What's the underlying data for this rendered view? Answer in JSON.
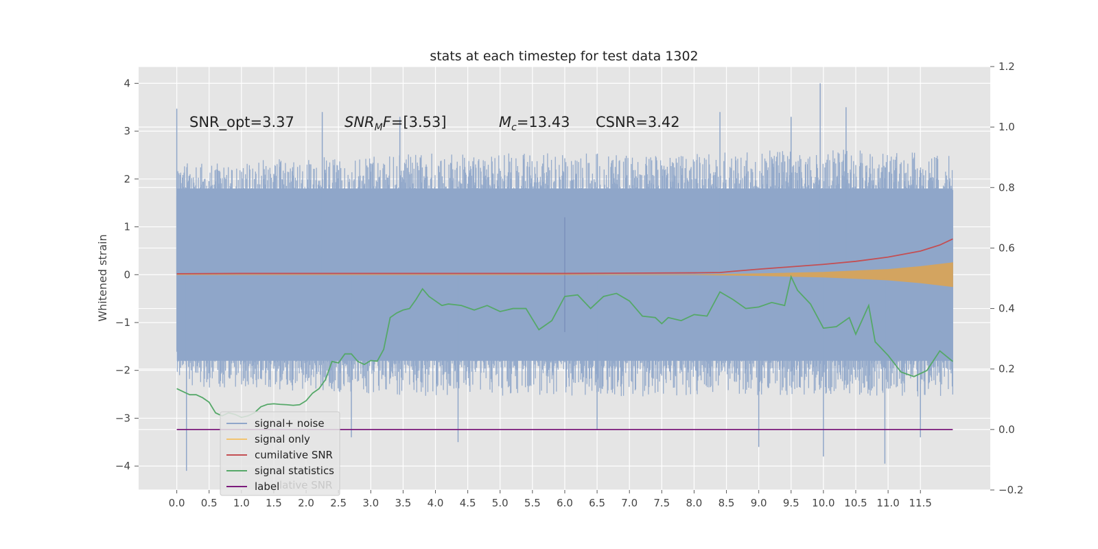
{
  "chart_data": {
    "type": "line",
    "title": "stats at each timestep for test data 1302",
    "ylabel": "Whitened strain",
    "xlabel": "",
    "x_ticks": [
      "0.0",
      "0.5",
      "1.0",
      "1.5",
      "2.0",
      "2.5",
      "3.0",
      "3.5",
      "4.0",
      "4.5",
      "5.0",
      "5.5",
      "6.0",
      "6.5",
      "7.0",
      "7.5",
      "8.0",
      "8.5",
      "9.0",
      "9.5",
      "10.0",
      "10.5",
      "11.0",
      "11.5"
    ],
    "xlim": [
      -0.59,
      12.58
    ],
    "ylim_left": [
      -4.5,
      4.35
    ],
    "yticks_left": [
      4,
      3,
      2,
      1,
      0,
      -1,
      -2,
      -3,
      -4
    ],
    "ylim_right": [
      -0.2,
      1.2
    ],
    "yticks_right": [
      "1.2",
      "1.0",
      "0.8",
      "0.6",
      "0.4",
      "0.2",
      "0.0",
      "−0.2"
    ],
    "grid": true,
    "annotations": {
      "snr_opt": "SNR_opt=3.37",
      "snr_mf_prefix": "SNR",
      "snr_mf_sub": "M",
      "snr_mf_f": "F",
      "snr_mf_value": "=[3.53]",
      "mc_prefix": "M",
      "mc_sub": "c",
      "mc_value": "=13.43",
      "csnr": "CSNR=3.42"
    },
    "legend": {
      "placement": "lower-left",
      "entries": [
        {
          "label": "signal+ noise",
          "color": "#8fa6c9"
        },
        {
          "label": "signal only",
          "color": "#f2c46e"
        },
        {
          "label": "cumilative SNR",
          "color": "#c44e52"
        },
        {
          "label": "signal statistics",
          "color": "#55a868"
        },
        {
          "label": "label",
          "color": "#7b1a7b"
        }
      ],
      "overlapped_fragment": "lative SNR"
    },
    "series": [
      {
        "name": "signal+ noise",
        "axis": "left",
        "color": "#8fa6c9",
        "x_range": [
          0.0,
          12.0
        ],
        "envelope_upper": [
          [
            0.0,
            2.3
          ],
          [
            2.0,
            2.4
          ],
          [
            4.0,
            2.5
          ],
          [
            6.0,
            2.5
          ],
          [
            8.0,
            2.5
          ],
          [
            10.0,
            2.6
          ],
          [
            12.0,
            2.5
          ]
        ],
        "envelope_lower": [
          [
            0.0,
            -2.3
          ],
          [
            2.0,
            -2.4
          ],
          [
            4.0,
            -2.5
          ],
          [
            6.0,
            -2.5
          ],
          [
            8.0,
            -2.5
          ],
          [
            10.0,
            -2.5
          ],
          [
            12.0,
            -2.5
          ]
        ],
        "peaks": [
          [
            0.0,
            3.47
          ],
          [
            0.15,
            -4.1
          ],
          [
            2.25,
            3.4
          ],
          [
            2.7,
            -3.4
          ],
          [
            3.45,
            3.3
          ],
          [
            4.35,
            -3.5
          ],
          [
            6.5,
            -3.25
          ],
          [
            9.95,
            4.0
          ],
          [
            10.35,
            3.5
          ],
          [
            10.95,
            -3.95
          ],
          [
            9.0,
            -3.6
          ],
          [
            10.0,
            -3.8
          ],
          [
            11.5,
            -3.4
          ],
          [
            9.5,
            3.3
          ],
          [
            8.4,
            3.4
          ]
        ],
        "spike_at": [
          6.0,
          1.2,
          -1.2
        ]
      },
      {
        "name": "signal only",
        "axis": "left",
        "color": "#e0a44e",
        "envelope": [
          [
            0.0,
            0.0
          ],
          [
            8.0,
            0.0
          ],
          [
            9.0,
            0.02
          ],
          [
            10.0,
            0.05
          ],
          [
            11.0,
            0.11
          ],
          [
            11.5,
            0.17
          ],
          [
            12.0,
            0.25
          ]
        ]
      },
      {
        "name": "cumilative SNR",
        "axis": "right",
        "color": "#c44e52",
        "points": [
          [
            0.0,
            0.515
          ],
          [
            1.0,
            0.516
          ],
          [
            2.0,
            0.516
          ],
          [
            3.0,
            0.516
          ],
          [
            4.0,
            0.516
          ],
          [
            5.0,
            0.516
          ],
          [
            6.0,
            0.516
          ],
          [
            7.0,
            0.517
          ],
          [
            8.0,
            0.518
          ],
          [
            8.4,
            0.519
          ],
          [
            8.6,
            0.523
          ],
          [
            9.0,
            0.53
          ],
          [
            9.5,
            0.538
          ],
          [
            10.0,
            0.546
          ],
          [
            10.5,
            0.556
          ],
          [
            11.0,
            0.57
          ],
          [
            11.5,
            0.59
          ],
          [
            11.8,
            0.61
          ],
          [
            12.0,
            0.63
          ]
        ]
      },
      {
        "name": "signal statistics",
        "axis": "right",
        "color": "#55a868",
        "points": [
          [
            0.0,
            0.135
          ],
          [
            0.1,
            0.125
          ],
          [
            0.2,
            0.115
          ],
          [
            0.3,
            0.115
          ],
          [
            0.4,
            0.105
          ],
          [
            0.5,
            0.09
          ],
          [
            0.6,
            0.055
          ],
          [
            0.7,
            0.045
          ],
          [
            0.8,
            0.055
          ],
          [
            0.9,
            0.05
          ],
          [
            1.0,
            0.04
          ],
          [
            1.1,
            0.045
          ],
          [
            1.2,
            0.055
          ],
          [
            1.3,
            0.075
          ],
          [
            1.4,
            0.083
          ],
          [
            1.5,
            0.085
          ],
          [
            1.6,
            0.083
          ],
          [
            1.7,
            0.082
          ],
          [
            1.8,
            0.08
          ],
          [
            1.9,
            0.082
          ],
          [
            2.0,
            0.095
          ],
          [
            2.1,
            0.12
          ],
          [
            2.2,
            0.135
          ],
          [
            2.3,
            0.165
          ],
          [
            2.4,
            0.225
          ],
          [
            2.5,
            0.22
          ],
          [
            2.6,
            0.25
          ],
          [
            2.7,
            0.25
          ],
          [
            2.8,
            0.225
          ],
          [
            2.9,
            0.215
          ],
          [
            3.0,
            0.228
          ],
          [
            3.1,
            0.226
          ],
          [
            3.2,
            0.265
          ],
          [
            3.3,
            0.37
          ],
          [
            3.4,
            0.385
          ],
          [
            3.5,
            0.395
          ],
          [
            3.6,
            0.4
          ],
          [
            3.7,
            0.43
          ],
          [
            3.8,
            0.465
          ],
          [
            3.9,
            0.44
          ],
          [
            4.0,
            0.425
          ],
          [
            4.1,
            0.41
          ],
          [
            4.2,
            0.415
          ],
          [
            4.4,
            0.41
          ],
          [
            4.6,
            0.395
          ],
          [
            4.8,
            0.41
          ],
          [
            5.0,
            0.39
          ],
          [
            5.2,
            0.4
          ],
          [
            5.4,
            0.4
          ],
          [
            5.6,
            0.33
          ],
          [
            5.8,
            0.36
          ],
          [
            6.0,
            0.44
          ],
          [
            6.2,
            0.445
          ],
          [
            6.4,
            0.4
          ],
          [
            6.6,
            0.44
          ],
          [
            6.8,
            0.45
          ],
          [
            7.0,
            0.425
          ],
          [
            7.2,
            0.375
          ],
          [
            7.4,
            0.37
          ],
          [
            7.5,
            0.35
          ],
          [
            7.6,
            0.37
          ],
          [
            7.8,
            0.36
          ],
          [
            8.0,
            0.38
          ],
          [
            8.2,
            0.375
          ],
          [
            8.4,
            0.455
          ],
          [
            8.6,
            0.43
          ],
          [
            8.8,
            0.4
          ],
          [
            9.0,
            0.405
          ],
          [
            9.2,
            0.42
          ],
          [
            9.4,
            0.41
          ],
          [
            9.5,
            0.505
          ],
          [
            9.6,
            0.46
          ],
          [
            9.8,
            0.415
          ],
          [
            10.0,
            0.335
          ],
          [
            10.2,
            0.34
          ],
          [
            10.4,
            0.37
          ],
          [
            10.5,
            0.315
          ],
          [
            10.7,
            0.41
          ],
          [
            10.8,
            0.29
          ],
          [
            11.0,
            0.245
          ],
          [
            11.2,
            0.19
          ],
          [
            11.4,
            0.175
          ],
          [
            11.6,
            0.195
          ],
          [
            11.8,
            0.26
          ],
          [
            12.0,
            0.225
          ]
        ]
      },
      {
        "name": "label",
        "axis": "right",
        "color": "#7b1a7b",
        "points": [
          [
            0.0,
            0.0
          ],
          [
            12.0,
            0.0
          ]
        ]
      }
    ]
  }
}
